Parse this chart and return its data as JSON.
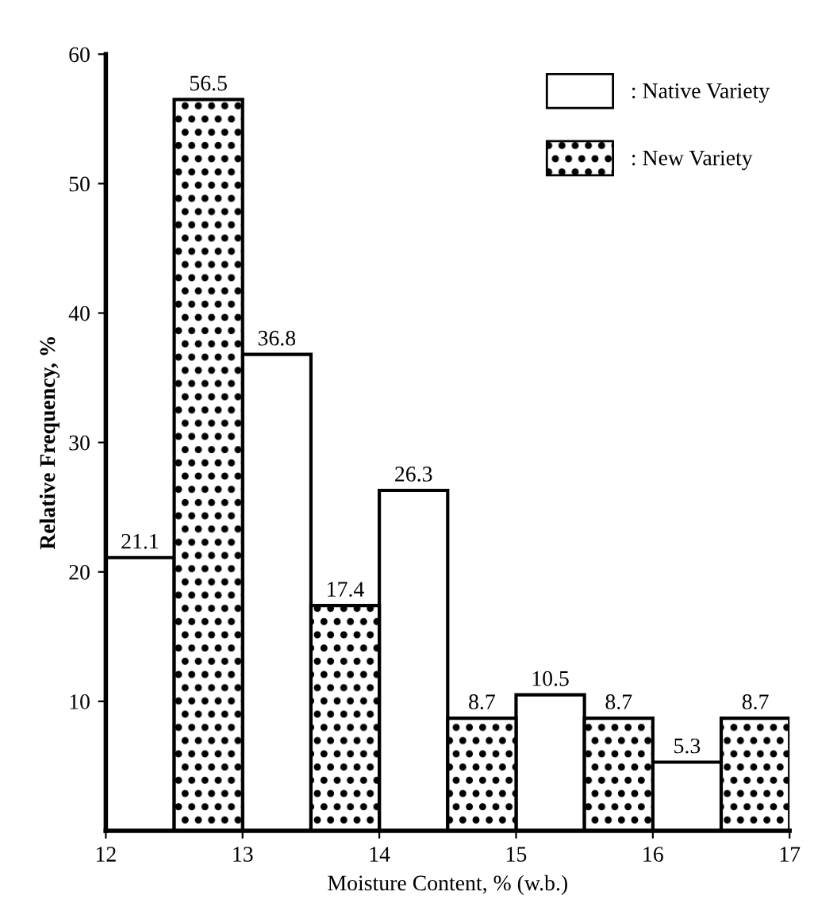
{
  "chart_data": {
    "type": "bar",
    "xlabel": "Moisture Content, % (w.b.)",
    "ylabel": "Relative Frequency, %",
    "xlim": [
      12,
      17
    ],
    "xticks": [
      12,
      13,
      14,
      15,
      16,
      17
    ],
    "ylim": [
      0,
      60
    ],
    "yticks": [
      10,
      20,
      30,
      40,
      50,
      60
    ],
    "data_labels": true,
    "legend": "top right",
    "grid": false,
    "series": [
      {
        "name": ": Native Variety",
        "color": "#000000",
        "x": [
          12.25,
          13.25,
          14.25,
          15.25,
          16.25
        ],
        "values": [
          21.1,
          36.8,
          26.3,
          10.5,
          5.3
        ]
      },
      {
        "name": ": New Variety",
        "color": "#000000",
        "x": [
          12.75,
          13.75,
          14.75,
          15.75,
          16.75
        ],
        "values": [
          56.5,
          17.4,
          8.7,
          8.7,
          8.7
        ]
      }
    ]
  }
}
